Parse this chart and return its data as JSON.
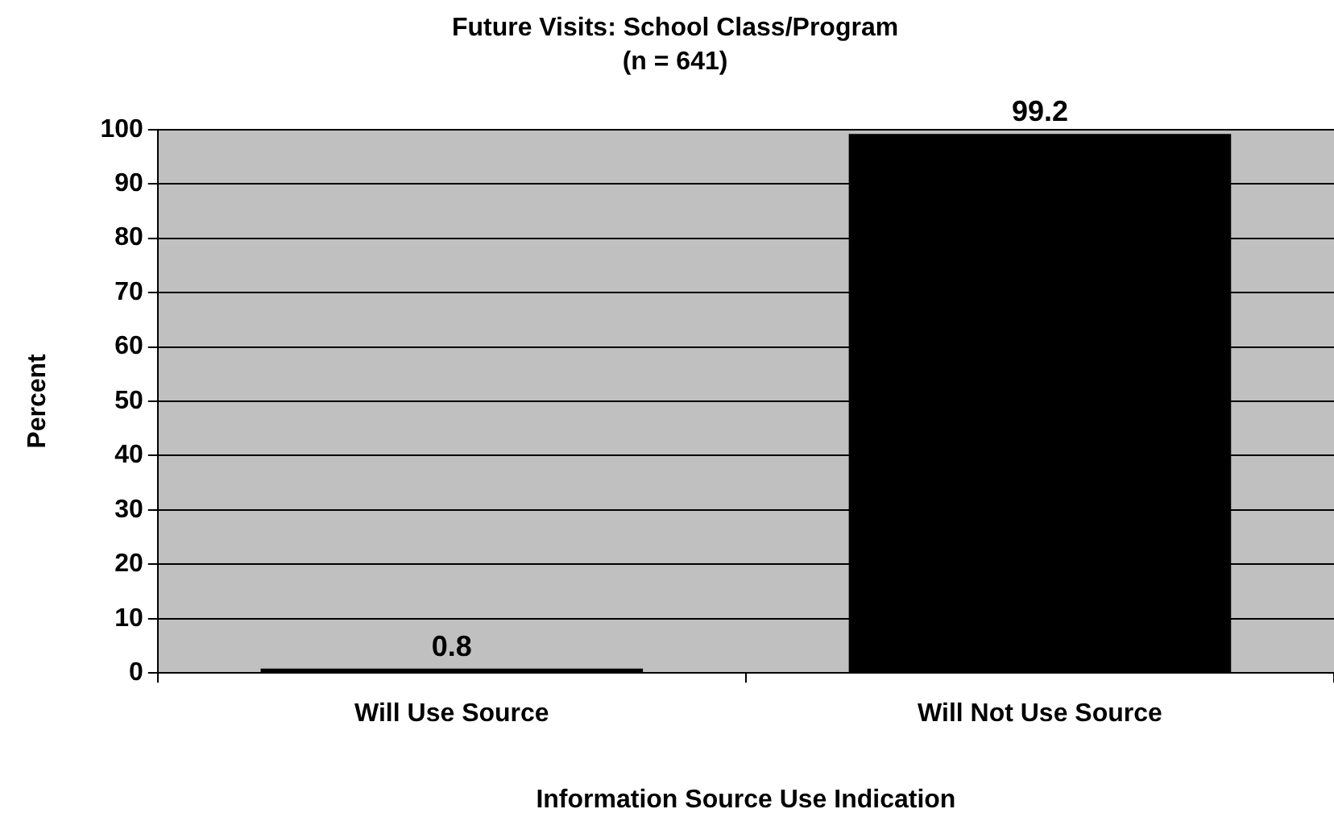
{
  "chart_data": {
    "type": "bar",
    "title": "Future Visits: School Class/Program",
    "subtitle": "(n = 641)",
    "xlabel": "Information Source Use Indication",
    "ylabel": "Percent",
    "categories": [
      "Will Use Source",
      "Will Not Use Source"
    ],
    "values": [
      0.8,
      99.2
    ],
    "color": "#000000",
    "ylim": [
      0,
      100
    ],
    "yticks": [
      0,
      10,
      20,
      30,
      40,
      50,
      60,
      70,
      80,
      90,
      100
    ],
    "grid": "y",
    "legend": false,
    "data_labels": true
  }
}
